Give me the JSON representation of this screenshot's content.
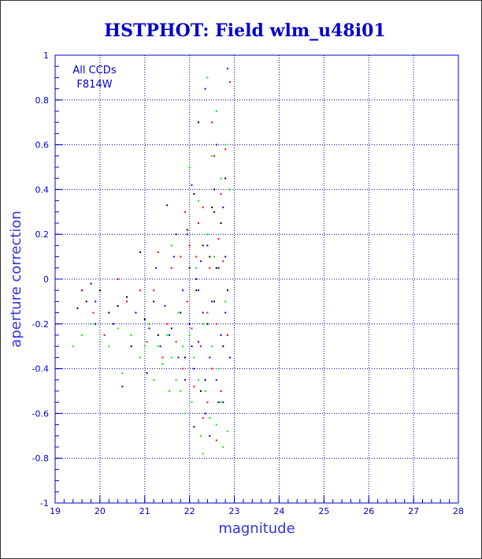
{
  "chart_data": {
    "type": "scatter",
    "title": "HSTPHOT: Field wlm_u48i01",
    "xlabel": "magnitude",
    "ylabel": "aperture correction",
    "xlim": [
      19,
      28
    ],
    "ylim": [
      -1,
      1
    ],
    "xticks": [
      "19",
      "20",
      "21",
      "22",
      "23",
      "24",
      "25",
      "26",
      "27",
      "28"
    ],
    "yticks": [
      "-1",
      "-0.8",
      "-0.6",
      "-0.4",
      "-0.2",
      "0",
      "0.2",
      "0.4",
      "0.6",
      "0.8",
      "1"
    ],
    "grid": true,
    "annotations": [
      "All CCDs",
      "F814W"
    ],
    "colors": {
      "axis": "#0000cc",
      "grid": "#0000cc",
      "title": "#0000cc"
    },
    "series": [
      {
        "color": "#000000",
        "points": [
          [
            19.5,
            -0.13
          ],
          [
            19.7,
            -0.1
          ],
          [
            19.8,
            -0.02
          ],
          [
            19.9,
            -0.2
          ],
          [
            20.0,
            -0.05
          ],
          [
            20.2,
            -0.15
          ],
          [
            20.4,
            -0.12
          ],
          [
            20.6,
            -0.08
          ],
          [
            20.7,
            -0.3
          ],
          [
            20.9,
            0.12
          ],
          [
            21.0,
            -0.18
          ],
          [
            21.05,
            -0.42
          ],
          [
            21.2,
            -0.1
          ],
          [
            21.3,
            -0.25
          ],
          [
            21.5,
            0.33
          ],
          [
            21.6,
            -0.22
          ],
          [
            21.7,
            0.2
          ],
          [
            21.8,
            -0.15
          ],
          [
            21.9,
            -0.35
          ],
          [
            22.0,
            0.05
          ],
          [
            22.05,
            -0.3
          ],
          [
            22.1,
            0.38
          ],
          [
            22.2,
            0.7
          ],
          [
            22.3,
            0.15
          ],
          [
            22.35,
            -0.45
          ],
          [
            22.4,
            -0.2
          ],
          [
            22.5,
            0.32
          ],
          [
            22.55,
            -0.1
          ],
          [
            22.6,
            0.05
          ],
          [
            22.65,
            -0.55
          ],
          [
            22.7,
            0.25
          ],
          [
            22.75,
            -0.3
          ],
          [
            22.8,
            0.45
          ],
          [
            22.85,
            -0.05
          ],
          [
            22.1,
            -0.66
          ],
          [
            22.25,
            -0.5
          ],
          [
            22.45,
            0.1
          ],
          [
            21.95,
            0.22
          ],
          [
            22.15,
            -0.05
          ],
          [
            22.55,
            0.4
          ]
        ]
      },
      {
        "color": "#0000ff",
        "points": [
          [
            19.6,
            -0.05
          ],
          [
            19.9,
            -0.1
          ],
          [
            20.3,
            -0.2
          ],
          [
            20.5,
            -0.48
          ],
          [
            20.8,
            -0.15
          ],
          [
            21.1,
            -0.22
          ],
          [
            21.25,
            0.05
          ],
          [
            21.35,
            -0.3
          ],
          [
            21.45,
            -0.12
          ],
          [
            21.55,
            -0.25
          ],
          [
            21.65,
            0.1
          ],
          [
            21.75,
            -0.35
          ],
          [
            21.85,
            -0.05
          ],
          [
            21.95,
            0.2
          ],
          [
            22.0,
            -0.2
          ],
          [
            22.1,
            -0.4
          ],
          [
            22.15,
            0.0
          ],
          [
            22.2,
            -0.28
          ],
          [
            22.25,
            0.08
          ],
          [
            22.3,
            -0.15
          ],
          [
            22.35,
            -0.6
          ],
          [
            22.4,
            0.15
          ],
          [
            22.45,
            -0.35
          ],
          [
            22.5,
            -0.1
          ],
          [
            22.55,
            0.3
          ],
          [
            22.6,
            -0.45
          ],
          [
            22.65,
            0.05
          ],
          [
            22.7,
            -0.25
          ],
          [
            22.75,
            -0.55
          ],
          [
            22.8,
            -0.15
          ],
          [
            22.85,
            0.94
          ],
          [
            22.9,
            -0.35
          ],
          [
            22.05,
            0.42
          ],
          [
            22.35,
            0.85
          ],
          [
            22.6,
            0.6
          ],
          [
            22.75,
            0.32
          ],
          [
            22.2,
            -0.05
          ],
          [
            21.9,
            -0.45
          ],
          [
            22.45,
            -0.7
          ],
          [
            22.8,
            0.1
          ]
        ]
      },
      {
        "color": "#ff0000",
        "points": [
          [
            19.6,
            -0.05
          ],
          [
            19.85,
            -0.15
          ],
          [
            20.1,
            -0.25
          ],
          [
            20.4,
            0.0
          ],
          [
            20.6,
            -0.1
          ],
          [
            20.9,
            -0.05
          ],
          [
            21.05,
            -0.28
          ],
          [
            21.2,
            -0.05
          ],
          [
            21.3,
            0.12
          ],
          [
            21.4,
            -0.35
          ],
          [
            21.5,
            -0.2
          ],
          [
            21.6,
            0.05
          ],
          [
            21.7,
            -0.28
          ],
          [
            21.8,
            0.1
          ],
          [
            21.85,
            -0.4
          ],
          [
            21.95,
            -0.1
          ],
          [
            22.0,
            0.15
          ],
          [
            22.05,
            -0.22
          ],
          [
            22.1,
            -0.48
          ],
          [
            22.15,
            0.1
          ],
          [
            22.25,
            -0.3
          ],
          [
            22.3,
            0.32
          ],
          [
            22.4,
            -0.15
          ],
          [
            22.45,
            0.05
          ],
          [
            22.5,
            -0.4
          ],
          [
            22.55,
            0.55
          ],
          [
            22.6,
            -0.2
          ],
          [
            22.65,
            0.18
          ],
          [
            22.7,
            -0.5
          ],
          [
            22.75,
            0.08
          ],
          [
            22.8,
            0.58
          ],
          [
            22.85,
            -0.25
          ],
          [
            22.9,
            0.88
          ],
          [
            22.3,
            -0.62
          ],
          [
            22.5,
            0.7
          ],
          [
            22.7,
            0.38
          ],
          [
            22.2,
            0.25
          ],
          [
            22.6,
            -0.72
          ],
          [
            21.9,
            0.3
          ],
          [
            22.4,
            -0.55
          ]
        ]
      },
      {
        "color": "#00ee00",
        "points": [
          [
            19.4,
            -0.3
          ],
          [
            19.6,
            -0.25
          ],
          [
            19.8,
            -0.2
          ],
          [
            20.0,
            -0.28
          ],
          [
            20.2,
            -0.3
          ],
          [
            20.4,
            -0.22
          ],
          [
            20.5,
            -0.42
          ],
          [
            20.7,
            -0.25
          ],
          [
            20.9,
            -0.35
          ],
          [
            21.0,
            -0.3
          ],
          [
            21.1,
            -0.2
          ],
          [
            21.2,
            -0.45
          ],
          [
            21.3,
            -0.3
          ],
          [
            21.4,
            -0.38
          ],
          [
            21.5,
            -0.25
          ],
          [
            21.55,
            -0.5
          ],
          [
            21.6,
            -0.35
          ],
          [
            21.7,
            -0.45
          ],
          [
            21.75,
            -0.15
          ],
          [
            21.8,
            -0.5
          ],
          [
            21.85,
            -0.3
          ],
          [
            21.9,
            -0.6
          ],
          [
            22.0,
            -0.25
          ],
          [
            22.05,
            -0.55
          ],
          [
            22.1,
            -0.35
          ],
          [
            22.15,
            0.05
          ],
          [
            22.2,
            -0.45
          ],
          [
            22.25,
            -0.7
          ],
          [
            22.3,
            -0.2
          ],
          [
            22.35,
            -0.5
          ],
          [
            22.4,
            0.2
          ],
          [
            22.45,
            -0.62
          ],
          [
            22.5,
            -0.3
          ],
          [
            22.55,
            0.1
          ],
          [
            22.6,
            -0.65
          ],
          [
            22.65,
            -0.4
          ],
          [
            22.7,
            0.45
          ],
          [
            22.75,
            -0.75
          ],
          [
            22.8,
            -0.1
          ],
          [
            22.85,
            -0.68
          ],
          [
            22.9,
            0.4
          ],
          [
            22.4,
            0.9
          ],
          [
            22.6,
            0.75
          ],
          [
            22.2,
            0.35
          ],
          [
            22.8,
            0.6
          ],
          [
            22.3,
            -0.78
          ],
          [
            22.5,
            0.55
          ],
          [
            22.7,
            -0.55
          ],
          [
            21.6,
            0.15
          ],
          [
            22.0,
            0.5
          ]
        ]
      }
    ]
  }
}
